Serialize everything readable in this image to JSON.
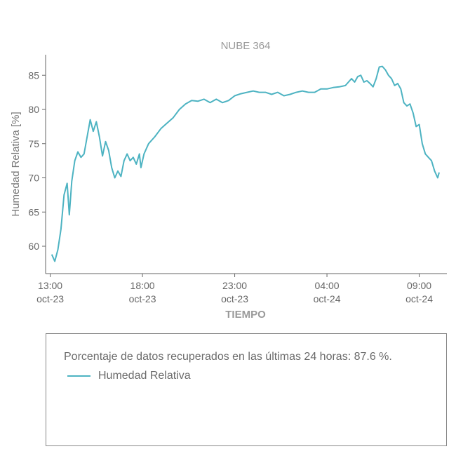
{
  "chart_data": {
    "type": "line",
    "title": "NUBE 364",
    "xlabel": "TIEMPO",
    "ylabel": "Humedad Relativa [%]",
    "ylim": [
      56,
      88
    ],
    "xlim": [
      "2023-10-23 12:45",
      "2023-10-24 10:30"
    ],
    "yticks": [
      60,
      65,
      70,
      75,
      80,
      85
    ],
    "xticks": [
      {
        "at": "2023-10-23 13:00",
        "time": "13:00",
        "date": "oct-23"
      },
      {
        "at": "2023-10-23 18:00",
        "time": "18:00",
        "date": "oct-23"
      },
      {
        "at": "2023-10-23 23:00",
        "time": "23:00",
        "date": "oct-23"
      },
      {
        "at": "2023-10-24 04:00",
        "time": "04:00",
        "date": "oct-24"
      },
      {
        "at": "2023-10-24 09:00",
        "time": "09:00",
        "date": "oct-24"
      }
    ],
    "grid": false,
    "legend_position": "bottom",
    "series": [
      {
        "name": "Humedad Relativa",
        "color": "#4db3c2",
        "points": [
          [
            "2023-10-23 13:05",
            58.8
          ],
          [
            "2023-10-23 13:15",
            57.8
          ],
          [
            "2023-10-23 13:25",
            59.5
          ],
          [
            "2023-10-23 13:35",
            62.5
          ],
          [
            "2023-10-23 13:45",
            67.5
          ],
          [
            "2023-10-23 13:55",
            69.2
          ],
          [
            "2023-10-23 14:02",
            64.6
          ],
          [
            "2023-10-23 14:10",
            69.5
          ],
          [
            "2023-10-23 14:20",
            72.5
          ],
          [
            "2023-10-23 14:30",
            73.8
          ],
          [
            "2023-10-23 14:40",
            73.0
          ],
          [
            "2023-10-23 14:50",
            73.5
          ],
          [
            "2023-10-23 15:00",
            76.0
          ],
          [
            "2023-10-23 15:10",
            78.5
          ],
          [
            "2023-10-23 15:20",
            76.8
          ],
          [
            "2023-10-23 15:30",
            78.2
          ],
          [
            "2023-10-23 15:40",
            76.0
          ],
          [
            "2023-10-23 15:50",
            73.2
          ],
          [
            "2023-10-23 16:00",
            75.3
          ],
          [
            "2023-10-23 16:10",
            74.0
          ],
          [
            "2023-10-23 16:20",
            71.5
          ],
          [
            "2023-10-23 16:30",
            70.0
          ],
          [
            "2023-10-23 16:40",
            71.0
          ],
          [
            "2023-10-23 16:50",
            70.2
          ],
          [
            "2023-10-23 17:00",
            72.5
          ],
          [
            "2023-10-23 17:10",
            73.5
          ],
          [
            "2023-10-23 17:20",
            72.5
          ],
          [
            "2023-10-23 17:30",
            73.0
          ],
          [
            "2023-10-23 17:40",
            72.0
          ],
          [
            "2023-10-23 17:50",
            73.5
          ],
          [
            "2023-10-23 17:55",
            71.5
          ],
          [
            "2023-10-23 18:05",
            73.5
          ],
          [
            "2023-10-23 18:20",
            75.0
          ],
          [
            "2023-10-23 18:40",
            76.0
          ],
          [
            "2023-10-23 19:00",
            77.2
          ],
          [
            "2023-10-23 19:20",
            78.0
          ],
          [
            "2023-10-23 19:40",
            78.8
          ],
          [
            "2023-10-23 20:00",
            80.0
          ],
          [
            "2023-10-23 20:20",
            80.8
          ],
          [
            "2023-10-23 20:40",
            81.3
          ],
          [
            "2023-10-23 21:00",
            81.2
          ],
          [
            "2023-10-23 21:20",
            81.5
          ],
          [
            "2023-10-23 21:40",
            81.0
          ],
          [
            "2023-10-23 22:00",
            81.5
          ],
          [
            "2023-10-23 22:20",
            81.0
          ],
          [
            "2023-10-23 22:40",
            81.3
          ],
          [
            "2023-10-23 23:00",
            82.0
          ],
          [
            "2023-10-23 23:20",
            82.3
          ],
          [
            "2023-10-23 23:40",
            82.5
          ],
          [
            "2023-10-24 00:00",
            82.7
          ],
          [
            "2023-10-24 00:20",
            82.5
          ],
          [
            "2023-10-24 00:40",
            82.5
          ],
          [
            "2023-10-24 01:00",
            82.2
          ],
          [
            "2023-10-24 01:20",
            82.5
          ],
          [
            "2023-10-24 01:40",
            82.0
          ],
          [
            "2023-10-24 02:00",
            82.2
          ],
          [
            "2023-10-24 02:20",
            82.5
          ],
          [
            "2023-10-24 02:40",
            82.7
          ],
          [
            "2023-10-24 03:00",
            82.5
          ],
          [
            "2023-10-24 03:20",
            82.5
          ],
          [
            "2023-10-24 03:40",
            83.0
          ],
          [
            "2023-10-24 04:00",
            83.0
          ],
          [
            "2023-10-24 04:20",
            83.2
          ],
          [
            "2023-10-24 04:40",
            83.3
          ],
          [
            "2023-10-24 05:00",
            83.5
          ],
          [
            "2023-10-24 05:10",
            84.0
          ],
          [
            "2023-10-24 05:20",
            84.5
          ],
          [
            "2023-10-24 05:30",
            84.0
          ],
          [
            "2023-10-24 05:40",
            84.8
          ],
          [
            "2023-10-24 05:50",
            85.0
          ],
          [
            "2023-10-24 06:00",
            84.0
          ],
          [
            "2023-10-24 06:10",
            84.2
          ],
          [
            "2023-10-24 06:20",
            83.8
          ],
          [
            "2023-10-24 06:30",
            83.3
          ],
          [
            "2023-10-24 06:40",
            84.5
          ],
          [
            "2023-10-24 06:50",
            86.2
          ],
          [
            "2023-10-24 07:00",
            86.3
          ],
          [
            "2023-10-24 07:10",
            85.8
          ],
          [
            "2023-10-24 07:20",
            85.0
          ],
          [
            "2023-10-24 07:30",
            84.5
          ],
          [
            "2023-10-24 07:40",
            83.5
          ],
          [
            "2023-10-24 07:50",
            83.8
          ],
          [
            "2023-10-24 08:00",
            83.0
          ],
          [
            "2023-10-24 08:10",
            81.0
          ],
          [
            "2023-10-24 08:20",
            80.5
          ],
          [
            "2023-10-24 08:30",
            80.8
          ],
          [
            "2023-10-24 08:40",
            79.5
          ],
          [
            "2023-10-24 08:50",
            77.5
          ],
          [
            "2023-10-24 09:00",
            77.8
          ],
          [
            "2023-10-24 09:10",
            75.0
          ],
          [
            "2023-10-24 09:20",
            73.5
          ],
          [
            "2023-10-24 09:30",
            73.0
          ],
          [
            "2023-10-24 09:40",
            72.5
          ],
          [
            "2023-10-24 09:50",
            71.0
          ],
          [
            "2023-10-24 10:00",
            70.0
          ],
          [
            "2023-10-24 10:05",
            70.8
          ]
        ]
      }
    ]
  },
  "legend": {
    "note": "Porcentaje de datos recuperados en las últimas 24 horas: 87.6 %.",
    "items": [
      {
        "label": "Humedad Relativa",
        "color": "#4db3c2"
      }
    ]
  }
}
